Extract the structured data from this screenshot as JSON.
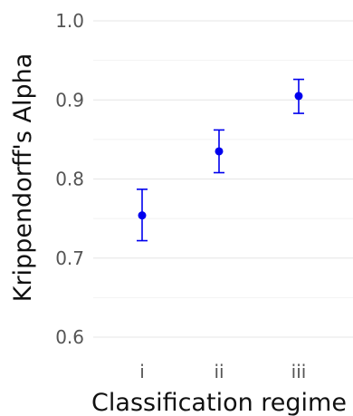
{
  "chart_data": {
    "type": "scatter",
    "title": "",
    "xlabel": "Classification regime",
    "ylabel": "Krippendorff's Alpha",
    "categories": [
      "i",
      "ii",
      "iii"
    ],
    "series": [
      {
        "values": [
          0.754,
          0.835,
          0.905
        ],
        "lower": [
          0.722,
          0.808,
          0.883
        ],
        "upper": [
          0.787,
          0.862,
          0.926
        ],
        "color": "#0000ee"
      }
    ],
    "ylim": [
      0.6,
      1.0
    ],
    "yticks": [
      0.6,
      0.7,
      0.8,
      0.9,
      1.0
    ],
    "ytick_labels": [
      "0.6",
      "0.7",
      "0.8",
      "0.9",
      "1.0"
    ],
    "grid": true,
    "legend": "none"
  }
}
